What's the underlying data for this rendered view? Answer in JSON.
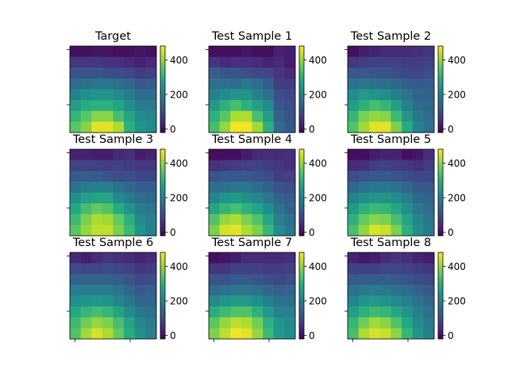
{
  "figure": {
    "background": "#ffffff"
  },
  "colormap": {
    "name": "viridis",
    "vmin": -20,
    "vmax": 480
  },
  "chart_data": [
    {
      "type": "heatmap",
      "title": "Target",
      "colorbar_ticks": [
        0,
        200,
        400
      ],
      "rows": 8,
      "cols": 8,
      "values": [
        [
          0,
          0,
          10,
          10,
          0,
          0,
          10,
          0
        ],
        [
          60,
          60,
          60,
          50,
          50,
          40,
          30,
          40
        ],
        [
          110,
          110,
          110,
          100,
          100,
          90,
          70,
          80
        ],
        [
          160,
          170,
          180,
          180,
          160,
          150,
          120,
          130
        ],
        [
          200,
          230,
          240,
          240,
          220,
          190,
          160,
          160
        ],
        [
          260,
          290,
          300,
          300,
          270,
          230,
          190,
          190
        ],
        [
          310,
          350,
          390,
          390,
          330,
          270,
          220,
          210
        ],
        [
          350,
          390,
          460,
          460,
          420,
          300,
          240,
          220
        ]
      ]
    },
    {
      "type": "heatmap",
      "title": "Test Sample 1",
      "colorbar_ticks": [
        0,
        200,
        400
      ],
      "rows": 8,
      "cols": 8,
      "values": [
        [
          0,
          0,
          0,
          10,
          0,
          0,
          30,
          20
        ],
        [
          60,
          40,
          50,
          50,
          40,
          30,
          40,
          20
        ],
        [
          130,
          110,
          110,
          100,
          90,
          90,
          60,
          40
        ],
        [
          170,
          170,
          160,
          180,
          160,
          130,
          70,
          70
        ],
        [
          200,
          220,
          240,
          240,
          200,
          170,
          100,
          90
        ],
        [
          250,
          300,
          330,
          300,
          260,
          220,
          120,
          100
        ],
        [
          300,
          350,
          420,
          420,
          330,
          260,
          140,
          110
        ],
        [
          330,
          400,
          470,
          470,
          410,
          300,
          160,
          120
        ]
      ]
    },
    {
      "type": "heatmap",
      "title": "Test Sample 2",
      "colorbar_ticks": [
        0,
        200,
        400
      ],
      "rows": 8,
      "cols": 8,
      "values": [
        [
          0,
          20,
          30,
          40,
          40,
          40,
          50,
          60
        ],
        [
          60,
          70,
          80,
          80,
          80,
          70,
          70,
          80
        ],
        [
          120,
          120,
          110,
          110,
          100,
          90,
          90,
          100
        ],
        [
          170,
          180,
          170,
          160,
          150,
          130,
          120,
          130
        ],
        [
          220,
          250,
          240,
          230,
          200,
          170,
          140,
          140
        ],
        [
          260,
          300,
          330,
          310,
          260,
          200,
          160,
          150
        ],
        [
          310,
          380,
          400,
          390,
          320,
          240,
          180,
          160
        ],
        [
          340,
          410,
          460,
          460,
          380,
          290,
          200,
          170
        ]
      ]
    },
    {
      "type": "heatmap",
      "title": "Test Sample 3",
      "colorbar_ticks": [
        0,
        200,
        400
      ],
      "rows": 8,
      "cols": 8,
      "values": [
        [
          30,
          30,
          20,
          20,
          40,
          50,
          20,
          30
        ],
        [
          80,
          80,
          80,
          70,
          80,
          70,
          60,
          60
        ],
        [
          120,
          130,
          120,
          110,
          100,
          100,
          90,
          90
        ],
        [
          170,
          190,
          200,
          200,
          170,
          150,
          130,
          130
        ],
        [
          230,
          260,
          270,
          270,
          220,
          190,
          160,
          150
        ],
        [
          280,
          330,
          360,
          340,
          290,
          240,
          190,
          180
        ],
        [
          320,
          380,
          420,
          410,
          360,
          300,
          220,
          200
        ],
        [
          350,
          400,
          430,
          430,
          380,
          320,
          240,
          200
        ]
      ]
    },
    {
      "type": "heatmap",
      "title": "Test Sample 4",
      "colorbar_ticks": [
        0,
        200,
        400
      ],
      "rows": 8,
      "cols": 8,
      "values": [
        [
          0,
          0,
          0,
          20,
          40,
          50,
          40,
          50
        ],
        [
          50,
          60,
          70,
          80,
          80,
          70,
          60,
          50
        ],
        [
          110,
          120,
          120,
          120,
          110,
          100,
          70,
          80
        ],
        [
          160,
          170,
          180,
          180,
          160,
          140,
          110,
          100
        ],
        [
          210,
          240,
          250,
          230,
          210,
          180,
          140,
          120
        ],
        [
          270,
          310,
          330,
          300,
          270,
          230,
          170,
          140
        ],
        [
          340,
          400,
          420,
          380,
          340,
          280,
          200,
          170
        ],
        [
          380,
          450,
          460,
          420,
          380,
          310,
          220,
          180
        ]
      ]
    },
    {
      "type": "heatmap",
      "title": "Test Sample 5",
      "colorbar_ticks": [
        0,
        200,
        400
      ],
      "rows": 8,
      "cols": 8,
      "values": [
        [
          0,
          0,
          20,
          30,
          30,
          0,
          10,
          50
        ],
        [
          40,
          50,
          70,
          80,
          70,
          60,
          50,
          70
        ],
        [
          100,
          110,
          120,
          120,
          110,
          100,
          90,
          90
        ],
        [
          150,
          170,
          180,
          180,
          170,
          150,
          120,
          120
        ],
        [
          200,
          230,
          240,
          240,
          220,
          190,
          150,
          140
        ],
        [
          250,
          300,
          320,
          310,
          280,
          230,
          180,
          160
        ],
        [
          300,
          360,
          390,
          380,
          330,
          270,
          210,
          180
        ],
        [
          330,
          400,
          450,
          440,
          380,
          300,
          230,
          190
        ]
      ]
    },
    {
      "type": "heatmap",
      "title": "Test Sample 6",
      "colorbar_ticks": [
        0,
        200,
        400
      ],
      "rows": 8,
      "cols": 8,
      "values": [
        [
          40,
          20,
          40,
          60,
          50,
          40,
          30,
          40
        ],
        [
          100,
          90,
          90,
          100,
          90,
          80,
          60,
          70
        ],
        [
          140,
          140,
          140,
          140,
          130,
          110,
          90,
          100
        ],
        [
          190,
          190,
          190,
          190,
          170,
          150,
          120,
          130
        ],
        [
          230,
          240,
          250,
          240,
          210,
          180,
          150,
          150
        ],
        [
          280,
          310,
          330,
          310,
          270,
          220,
          180,
          170
        ],
        [
          320,
          370,
          400,
          380,
          330,
          270,
          210,
          190
        ],
        [
          340,
          410,
          450,
          420,
          360,
          290,
          230,
          200
        ]
      ]
    },
    {
      "type": "heatmap",
      "title": "Test Sample 7",
      "colorbar_ticks": [
        0,
        200,
        400
      ],
      "rows": 8,
      "cols": 8,
      "values": [
        [
          0,
          10,
          20,
          40,
          40,
          40,
          40,
          50
        ],
        [
          60,
          60,
          80,
          80,
          80,
          70,
          70,
          80
        ],
        [
          110,
          110,
          120,
          120,
          110,
          100,
          90,
          100
        ],
        [
          160,
          170,
          180,
          180,
          170,
          150,
          130,
          140
        ],
        [
          220,
          240,
          250,
          250,
          230,
          200,
          170,
          170
        ],
        [
          290,
          320,
          340,
          340,
          300,
          250,
          200,
          200
        ],
        [
          350,
          400,
          430,
          420,
          370,
          300,
          240,
          220
        ],
        [
          380,
          430,
          470,
          460,
          400,
          320,
          250,
          230
        ]
      ]
    },
    {
      "type": "heatmap",
      "title": "Test Sample 8",
      "colorbar_ticks": [
        0,
        200,
        400
      ],
      "rows": 8,
      "cols": 8,
      "values": [
        [
          30,
          10,
          20,
          40,
          60,
          50,
          30,
          20
        ],
        [
          80,
          80,
          80,
          90,
          90,
          80,
          70,
          60
        ],
        [
          120,
          130,
          130,
          130,
          120,
          110,
          100,
          90
        ],
        [
          170,
          180,
          190,
          180,
          170,
          160,
          140,
          120
        ],
        [
          210,
          240,
          250,
          240,
          220,
          200,
          170,
          150
        ],
        [
          260,
          300,
          320,
          310,
          280,
          240,
          200,
          170
        ],
        [
          310,
          370,
          410,
          390,
          340,
          280,
          220,
          190
        ],
        [
          330,
          420,
          450,
          440,
          390,
          310,
          240,
          200
        ]
      ]
    }
  ]
}
